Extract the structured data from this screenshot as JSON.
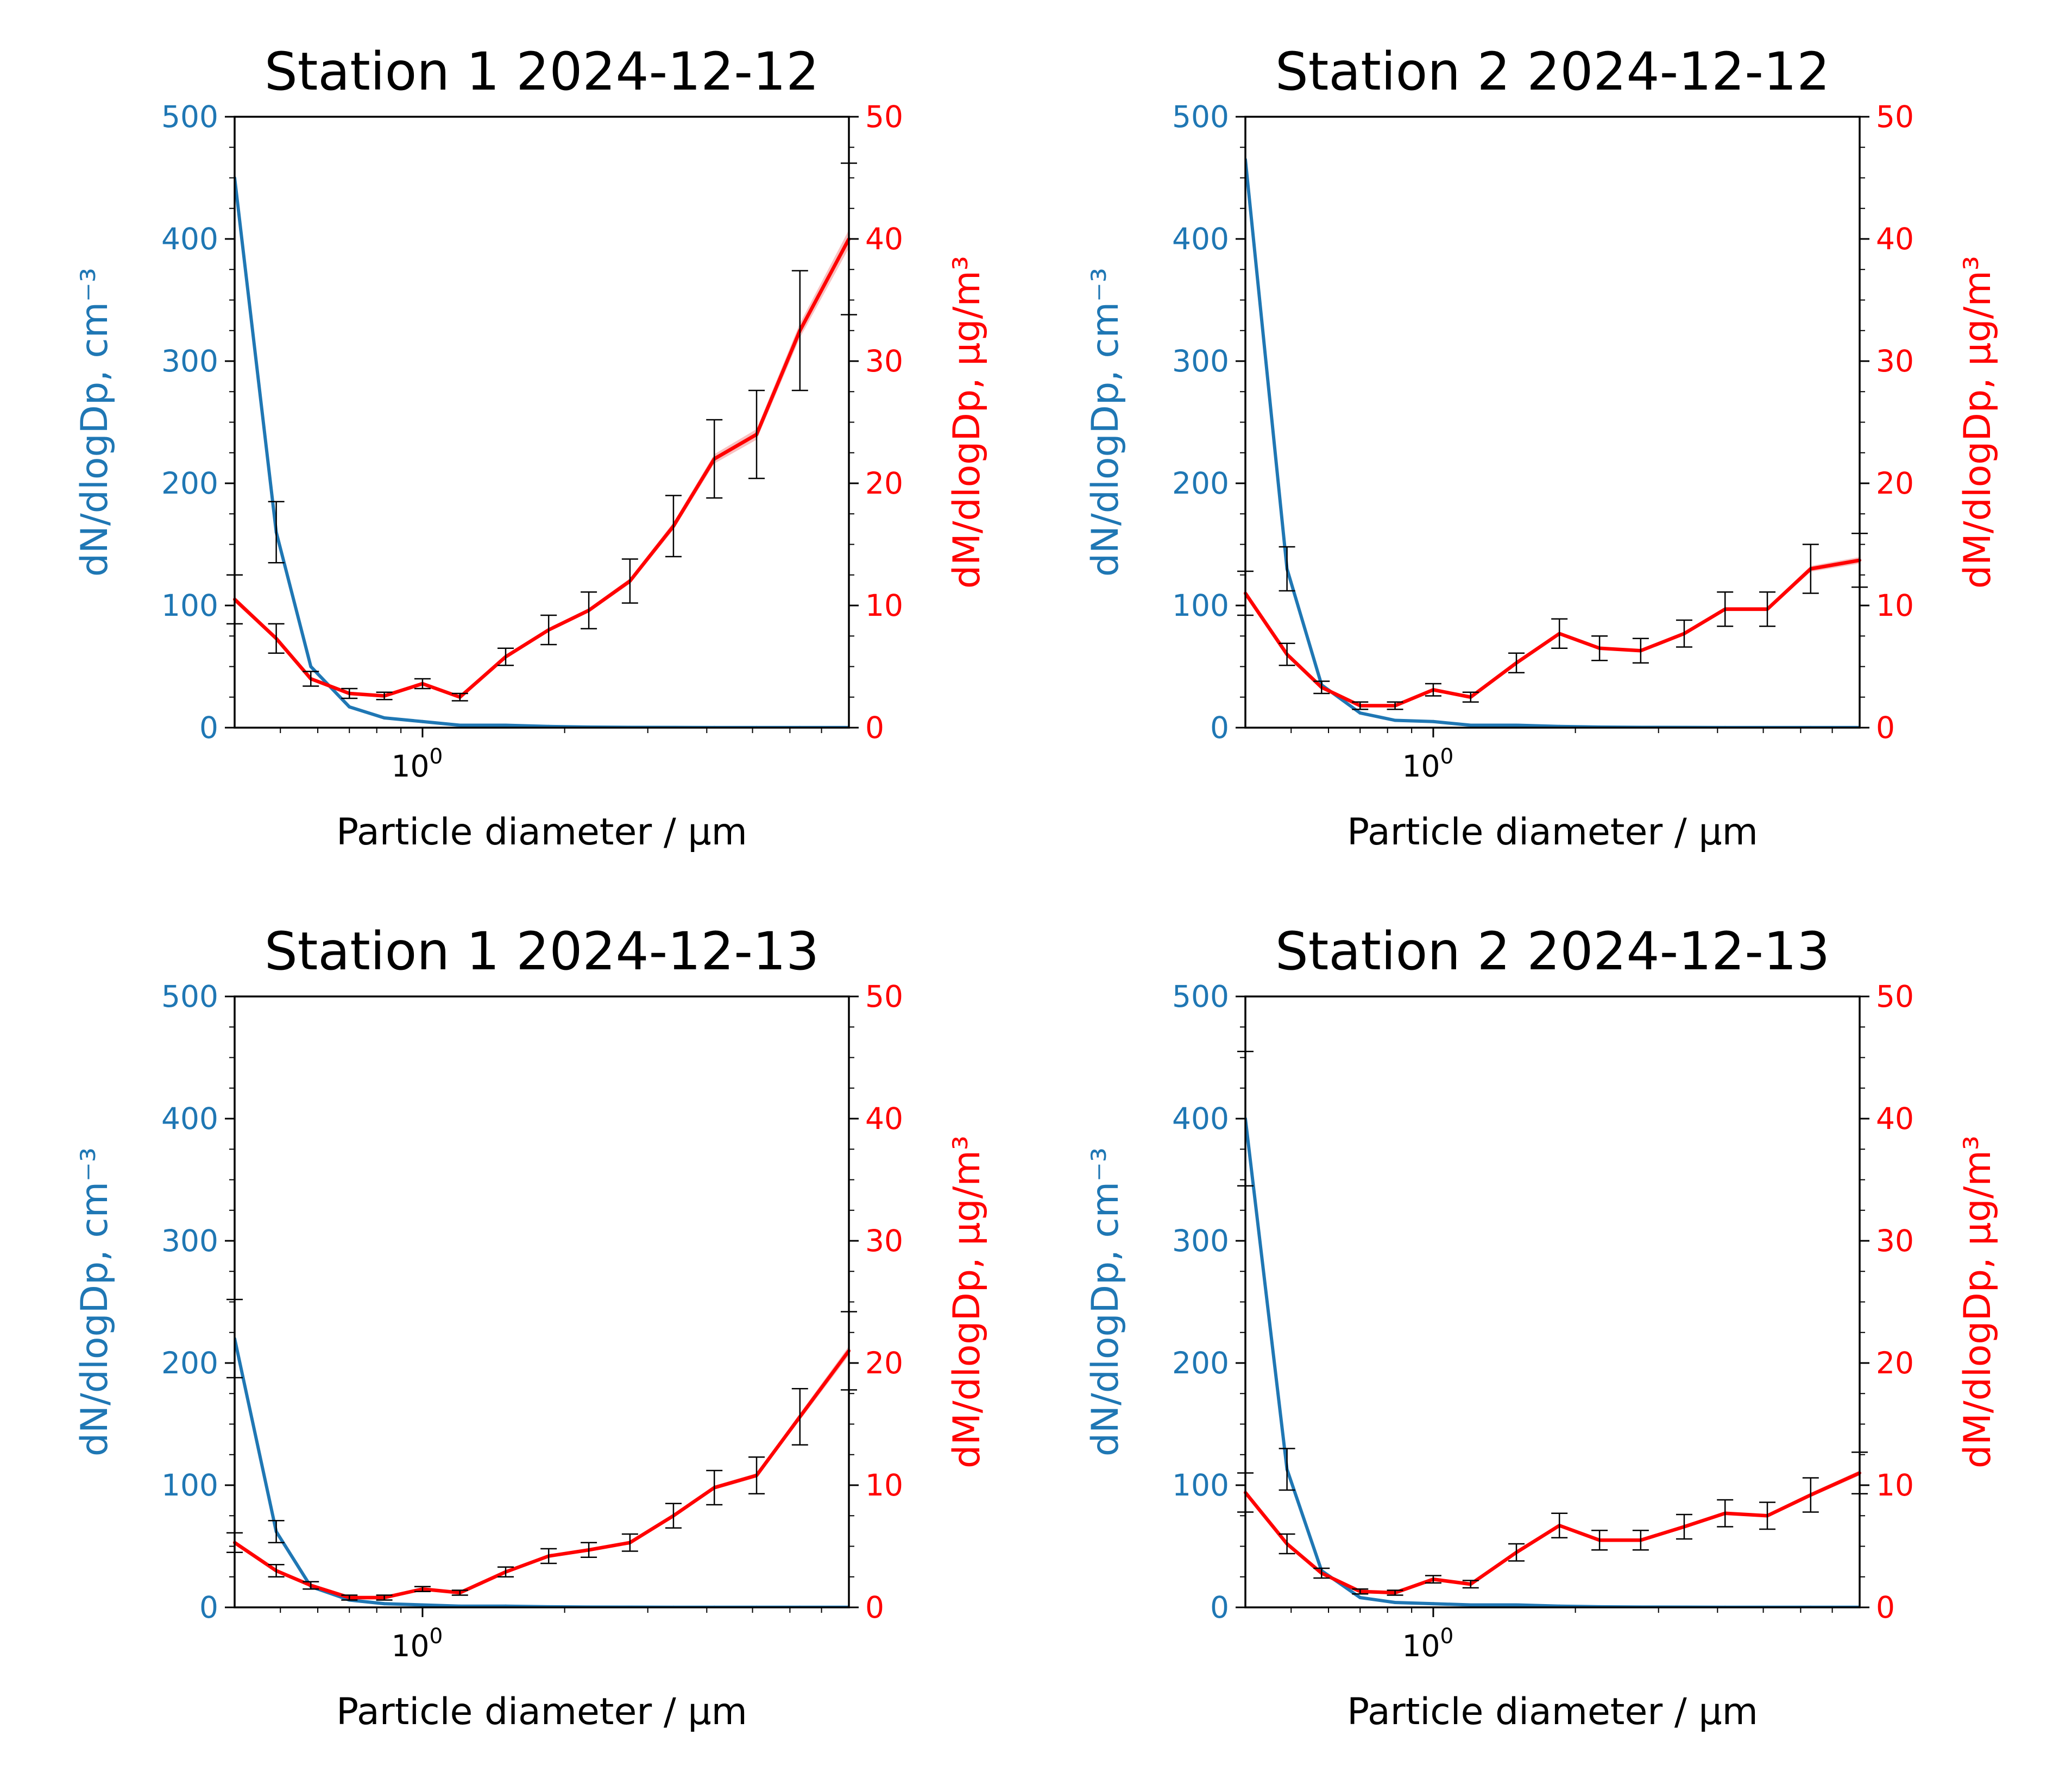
{
  "colors": {
    "number": "#1f77b4",
    "mass": "#ff0000",
    "mass_band": "#f4a6a6",
    "errorbar": "#000000"
  },
  "chart_data": [
    {
      "type": "line",
      "title": "Station 1 2024-12-12",
      "xlabel": "Particle diameter / μm",
      "ylabel_left": "dN/dlogDp, cm⁻³",
      "ylabel_right": "dM/dlogDp, μg/m³",
      "x_scale": "log",
      "xlim": [
        0.4,
        8.0
      ],
      "x_tick_base": "10",
      "x_tick_exp": "0",
      "ylim_left": [
        0,
        500
      ],
      "ylim_right": [
        0,
        50
      ],
      "yticks_left": [
        "0",
        "100",
        "200",
        "300",
        "400",
        "500"
      ],
      "yticks_right": [
        "0",
        "10",
        "20",
        "30",
        "40",
        "50"
      ],
      "x": [
        0.4,
        0.49,
        0.58,
        0.7,
        0.83,
        1.0,
        1.2,
        1.5,
        1.85,
        2.25,
        2.75,
        3.4,
        4.15,
        5.1,
        6.3,
        8.0
      ],
      "number": {
        "values": [
          450,
          160,
          50,
          17,
          8,
          5,
          2,
          2,
          1,
          0.5,
          0.3,
          0.2,
          0.1,
          0.1,
          0.1,
          0.1
        ],
        "err": [
          null,
          25,
          null,
          null,
          null,
          null,
          null,
          null,
          null,
          null,
          null,
          null,
          null,
          null,
          null,
          null
        ]
      },
      "mass": {
        "values": [
          10.5,
          7.3,
          4.0,
          2.8,
          2.6,
          3.6,
          2.5,
          5.8,
          8.0,
          9.6,
          12.0,
          16.5,
          22.0,
          24.0,
          32.5,
          40.0
        ],
        "err": [
          2.0,
          1.2,
          0.6,
          0.4,
          0.3,
          0.4,
          0.3,
          0.7,
          1.2,
          1.5,
          1.8,
          2.5,
          3.2,
          3.6,
          4.9,
          6.2
        ]
      }
    },
    {
      "type": "line",
      "title": "Station 2 2024-12-12",
      "xlabel": "Particle diameter / μm",
      "ylabel_left": "dN/dlogDp, cm⁻³",
      "ylabel_right": "dM/dlogDp, μg/m³",
      "x_scale": "log",
      "xlim": [
        0.4,
        8.0
      ],
      "x_tick_base": "10",
      "x_tick_exp": "0",
      "ylim_left": [
        0,
        500
      ],
      "ylim_right": [
        0,
        50
      ],
      "yticks_left": [
        "0",
        "100",
        "200",
        "300",
        "400",
        "500"
      ],
      "yticks_right": [
        "0",
        "10",
        "20",
        "30",
        "40",
        "50"
      ],
      "x": [
        0.4,
        0.49,
        0.58,
        0.7,
        0.83,
        1.0,
        1.2,
        1.5,
        1.85,
        2.25,
        2.75,
        3.4,
        4.15,
        5.1,
        6.3,
        8.0
      ],
      "number": {
        "values": [
          465,
          130,
          35,
          12,
          6,
          5,
          2,
          2,
          1,
          0.5,
          0.3,
          0.2,
          0.1,
          0.1,
          0.1,
          0.1
        ],
        "err": [
          null,
          18,
          null,
          null,
          null,
          null,
          null,
          null,
          null,
          null,
          null,
          null,
          null,
          null,
          null,
          null
        ]
      },
      "mass": {
        "values": [
          11.0,
          6.0,
          3.3,
          1.8,
          1.8,
          3.1,
          2.5,
          5.3,
          7.7,
          6.5,
          6.3,
          7.7,
          9.7,
          9.7,
          13.0,
          13.7
        ],
        "err": [
          1.8,
          0.9,
          0.5,
          0.3,
          0.3,
          0.5,
          0.4,
          0.8,
          1.2,
          1.0,
          1.0,
          1.1,
          1.4,
          1.4,
          2.0,
          2.2
        ]
      }
    },
    {
      "type": "line",
      "title": "Station 1 2024-12-13",
      "xlabel": "Particle diameter / μm",
      "ylabel_left": "dN/dlogDp, cm⁻³",
      "ylabel_right": "dM/dlogDp, μg/m³",
      "x_scale": "log",
      "xlim": [
        0.4,
        8.0
      ],
      "x_tick_base": "10",
      "x_tick_exp": "0",
      "ylim_left": [
        0,
        500
      ],
      "ylim_right": [
        0,
        50
      ],
      "yticks_left": [
        "0",
        "100",
        "200",
        "300",
        "400",
        "500"
      ],
      "yticks_right": [
        "0",
        "10",
        "20",
        "30",
        "40",
        "50"
      ],
      "x": [
        0.4,
        0.49,
        0.58,
        0.7,
        0.83,
        1.0,
        1.2,
        1.5,
        1.85,
        2.25,
        2.75,
        3.4,
        4.15,
        5.1,
        6.3,
        8.0
      ],
      "number": {
        "values": [
          220,
          62,
          17,
          6,
          3,
          2,
          1,
          1,
          0.5,
          0.3,
          0.2,
          0.1,
          0.1,
          0.1,
          0.1,
          0.1
        ],
        "err": [
          32,
          9,
          null,
          null,
          null,
          null,
          null,
          null,
          null,
          null,
          null,
          null,
          null,
          null,
          null,
          null
        ]
      },
      "mass": {
        "values": [
          5.3,
          3.0,
          1.8,
          0.8,
          0.8,
          1.5,
          1.2,
          2.9,
          4.2,
          4.7,
          5.3,
          7.5,
          9.8,
          10.8,
          15.6,
          21.0
        ],
        "err": [
          0.8,
          0.5,
          0.3,
          0.2,
          0.2,
          0.2,
          0.2,
          0.4,
          0.6,
          0.6,
          0.7,
          1.0,
          1.4,
          1.5,
          2.3,
          3.2
        ]
      }
    },
    {
      "type": "line",
      "title": "Station 2 2024-12-13",
      "xlabel": "Particle diameter / μm",
      "ylabel_left": "dN/dlogDp, cm⁻³",
      "ylabel_right": "dM/dlogDp, μg/m³",
      "x_scale": "log",
      "xlim": [
        0.4,
        8.0
      ],
      "x_tick_base": "10",
      "x_tick_exp": "0",
      "ylim_left": [
        0,
        500
      ],
      "ylim_right": [
        0,
        50
      ],
      "yticks_left": [
        "0",
        "100",
        "200",
        "300",
        "400",
        "500"
      ],
      "yticks_right": [
        "0",
        "10",
        "20",
        "30",
        "40",
        "50"
      ],
      "x": [
        0.4,
        0.49,
        0.58,
        0.7,
        0.83,
        1.0,
        1.2,
        1.5,
        1.85,
        2.25,
        2.75,
        3.4,
        4.15,
        5.1,
        6.3,
        8.0
      ],
      "number": {
        "values": [
          400,
          113,
          30,
          8,
          4,
          3,
          2,
          2,
          1,
          0.5,
          0.3,
          0.2,
          0.1,
          0.1,
          0.1,
          0.1
        ],
        "err": [
          55,
          17,
          null,
          null,
          null,
          null,
          null,
          null,
          null,
          null,
          null,
          null,
          null,
          null,
          null,
          null
        ]
      },
      "mass": {
        "values": [
          9.4,
          5.2,
          2.8,
          1.3,
          1.2,
          2.3,
          1.9,
          4.5,
          6.7,
          5.5,
          5.5,
          6.6,
          7.7,
          7.5,
          9.2,
          11.0
        ],
        "err": [
          1.6,
          0.8,
          0.4,
          0.2,
          0.2,
          0.3,
          0.3,
          0.7,
          1.0,
          0.8,
          0.8,
          1.0,
          1.1,
          1.1,
          1.4,
          1.7
        ]
      }
    }
  ]
}
